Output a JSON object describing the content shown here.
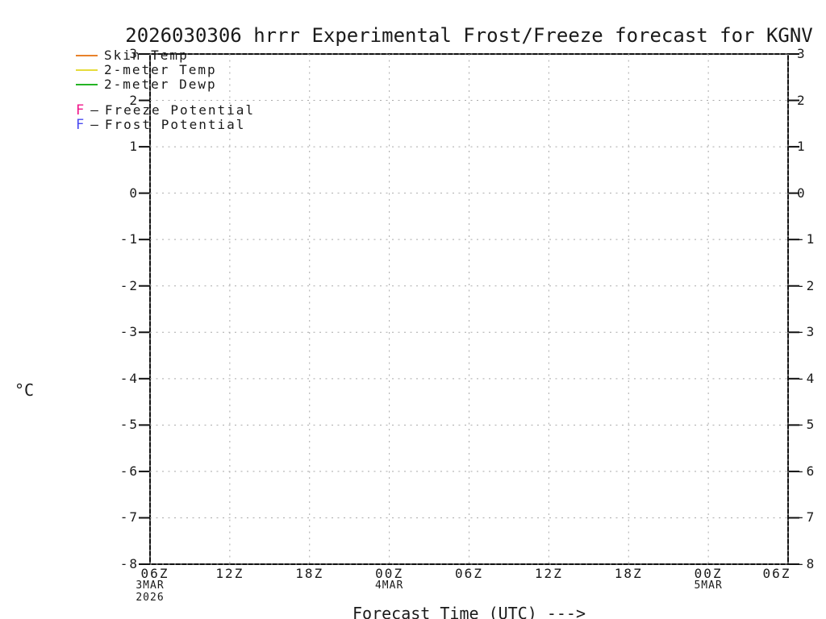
{
  "title": "2026030306 hrrr Experimental Frost/Freeze forecast for KGNV",
  "colors": {
    "skin_temp": "#E8822B",
    "two_meter_temp": "#E6DC3C",
    "two_meter_dewp": "#25B425",
    "freeze_potential": "#F01489",
    "frost_potential": "#4A4AF0",
    "grid": "#A9A9A9",
    "frame": "#111111",
    "text": "#1A1A1A"
  },
  "chart_data": {
    "type": "line",
    "title": "2026030306 hrrr Experimental Frost/Freeze forecast for KGNV",
    "xlabel": "Forecast Time (UTC) --->",
    "ylabel": "°C",
    "ylim": [
      -8,
      3
    ],
    "y_ticks": [
      3,
      2,
      1,
      0,
      -1,
      -2,
      -3,
      -4,
      -5,
      -6,
      -7,
      -8
    ],
    "y_axis_mirrored": true,
    "grid": true,
    "grid_style": "dotted",
    "x_ticks": [
      {
        "label": "06Z",
        "sub": [
          "3MAR",
          "2026"
        ]
      },
      {
        "label": "12Z",
        "sub": []
      },
      {
        "label": "18Z",
        "sub": []
      },
      {
        "label": "00Z",
        "sub": [
          "4MAR"
        ]
      },
      {
        "label": "06Z",
        "sub": []
      },
      {
        "label": "12Z",
        "sub": []
      },
      {
        "label": "18Z",
        "sub": []
      },
      {
        "label": "00Z",
        "sub": [
          "5MAR"
        ]
      },
      {
        "label": "06Z",
        "sub": []
      }
    ],
    "legend_position": "top-left",
    "legend": [
      {
        "name": "Skin Temp",
        "marker": "line",
        "color": "#E8822B"
      },
      {
        "name": "2-meter Temp",
        "marker": "line",
        "color": "#E6DC3C"
      },
      {
        "name": "2-meter Dewp",
        "marker": "line",
        "color": "#25B425"
      },
      {
        "name": "Freeze Potential",
        "marker": "F",
        "marker_char": "F",
        "dash": "—",
        "color": "#F01489"
      },
      {
        "name": "Frost Potential",
        "marker": "F",
        "marker_char": "F",
        "dash": "—",
        "color": "#4A4AF0"
      }
    ],
    "series": [
      {
        "name": "Skin Temp",
        "x": [],
        "values": []
      },
      {
        "name": "2-meter Temp",
        "x": [],
        "values": []
      },
      {
        "name": "2-meter Dewp",
        "x": [],
        "values": []
      }
    ]
  }
}
